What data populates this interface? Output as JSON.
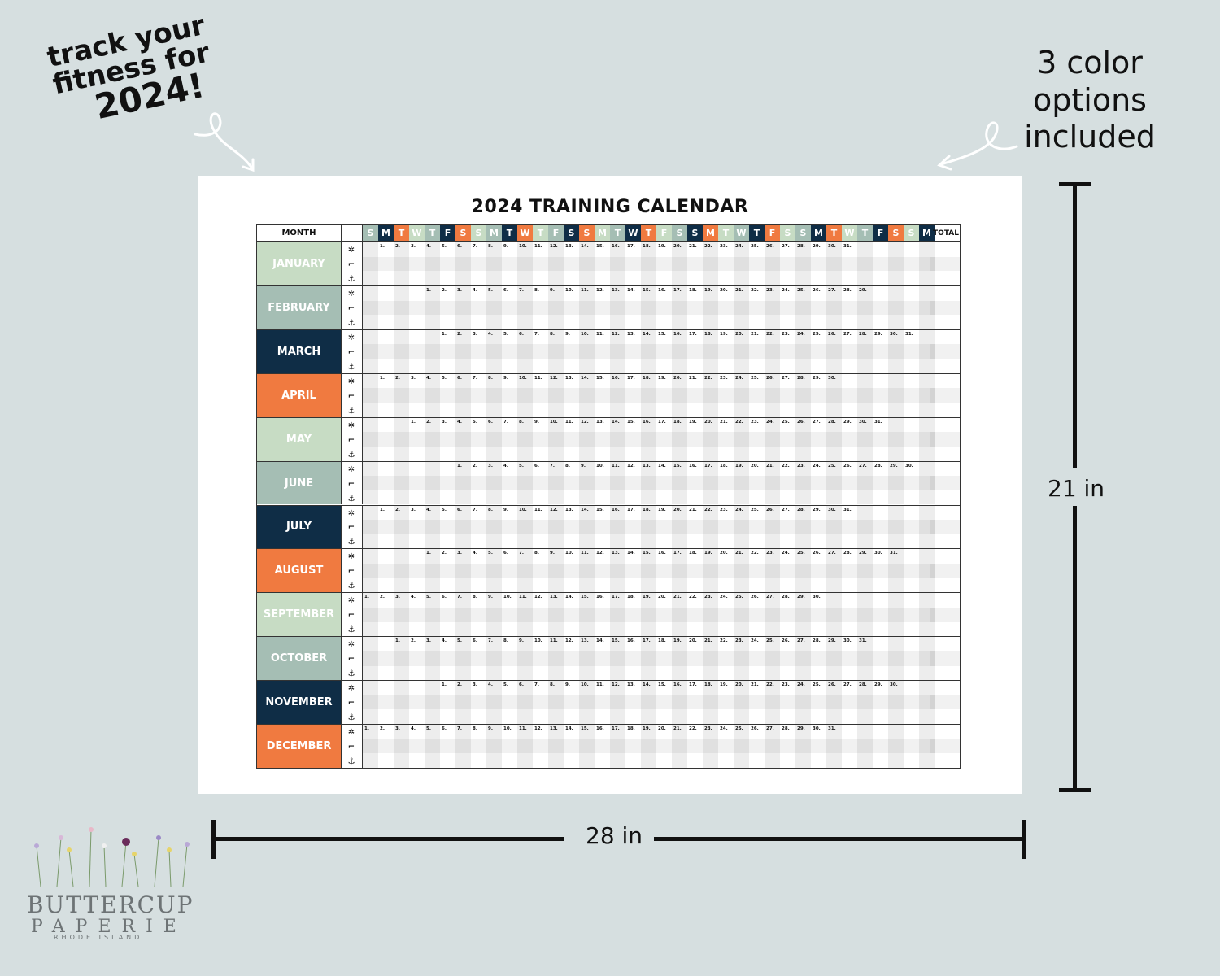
{
  "annotation_left": {
    "line1": "track your",
    "line2": "fitness for",
    "line3": "2024!"
  },
  "annotation_right": {
    "line1": "3 color",
    "line2": "options",
    "line3": "included"
  },
  "calendar": {
    "title": "2024 TRAINING CALENDAR",
    "month_header": "MONTH",
    "total_header": "TOTAL",
    "weekday_letters": [
      "S",
      "M",
      "T",
      "W",
      "T",
      "F",
      "S",
      "S",
      "M",
      "T",
      "W",
      "T",
      "F",
      "S",
      "S",
      "M",
      "T",
      "W",
      "T",
      "F",
      "S",
      "S",
      "M",
      "T",
      "W",
      "T",
      "F",
      "S",
      "S",
      "M",
      "T",
      "W",
      "T",
      "F",
      "S",
      "S",
      "M"
    ],
    "weekday_colors": [
      "#a5beb4",
      "#0f2d46",
      "#f07a40",
      "#c7dcc4",
      "#a5beb4",
      "#0f2d46",
      "#f07a40",
      "#c7dcc4",
      "#a5beb4",
      "#0f2d46",
      "#f07a40",
      "#c7dcc4",
      "#a5beb4",
      "#0f2d46",
      "#f07a40",
      "#c7dcc4",
      "#a5beb4",
      "#0f2d46",
      "#f07a40",
      "#c7dcc4",
      "#a5beb4",
      "#0f2d46",
      "#f07a40",
      "#c7dcc4",
      "#a5beb4",
      "#0f2d46",
      "#f07a40",
      "#c7dcc4",
      "#a5beb4",
      "#0f2d46",
      "#f07a40",
      "#c7dcc4",
      "#a5beb4",
      "#0f2d46",
      "#f07a40",
      "#c7dcc4",
      "#0f2d46"
    ],
    "icons": [
      "bicep-icon",
      "treadmill-icon",
      "bike-icon"
    ],
    "months": [
      {
        "name": "JANUARY",
        "color": "#c7dcc4",
        "start": 1,
        "days": 31
      },
      {
        "name": "FEBRUARY",
        "color": "#a5beb4",
        "start": 4,
        "days": 29
      },
      {
        "name": "MARCH",
        "color": "#0f2d46",
        "start": 5,
        "days": 31
      },
      {
        "name": "APRIL",
        "color": "#f07a40",
        "start": 1,
        "days": 30
      },
      {
        "name": "MAY",
        "color": "#c7dcc4",
        "start": 3,
        "days": 31
      },
      {
        "name": "JUNE",
        "color": "#a5beb4",
        "start": 6,
        "days": 30
      },
      {
        "name": "JULY",
        "color": "#0f2d46",
        "start": 1,
        "days": 31
      },
      {
        "name": "AUGUST",
        "color": "#f07a40",
        "start": 4,
        "days": 31
      },
      {
        "name": "SEPTEMBER",
        "color": "#c7dcc4",
        "start": 0,
        "days": 30
      },
      {
        "name": "OCTOBER",
        "color": "#a5beb4",
        "start": 2,
        "days": 31
      },
      {
        "name": "NOVEMBER",
        "color": "#0f2d46",
        "start": 5,
        "days": 30
      },
      {
        "name": "DECEMBER",
        "color": "#f07a40",
        "start": 0,
        "days": 31
      }
    ]
  },
  "dimensions": {
    "height": "21 in",
    "width": "28 in"
  },
  "logo": {
    "name_line1": "BUTTERCUP",
    "name_line2": "PAPERIE",
    "location": "RHODE ISLAND"
  }
}
